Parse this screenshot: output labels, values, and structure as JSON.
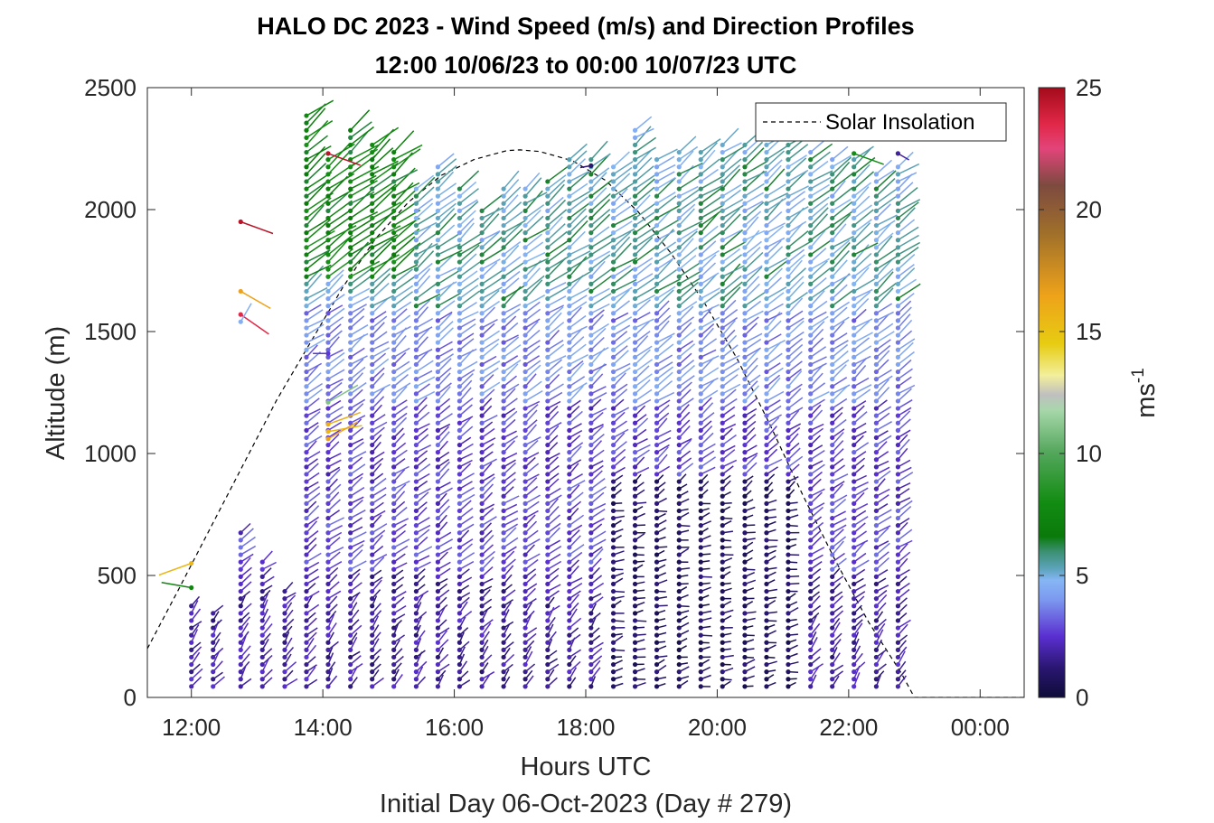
{
  "title_line1": "HALO DC 2023 - Wind Speed (m/s) and Direction Profiles",
  "title_line2": "12:00 10/06/23 to 00:00 10/07/23  UTC",
  "chart_data": {
    "type": "scatter",
    "xlabel": "Hours UTC",
    "subtitle": "Initial Day 06-Oct-2023 (Day # 279)",
    "ylabel": "Altitude (m)",
    "x_unit": "hours UTC",
    "xlim": [
      11.33,
      24.67
    ],
    "ylim": [
      0,
      2500
    ],
    "x_ticks": [
      {
        "value": 12,
        "label": "12:00"
      },
      {
        "value": 14,
        "label": "14:00"
      },
      {
        "value": 16,
        "label": "16:00"
      },
      {
        "value": 18,
        "label": "18:00"
      },
      {
        "value": 20,
        "label": "20:00"
      },
      {
        "value": 22,
        "label": "22:00"
      },
      {
        "value": 24,
        "label": "00:00"
      }
    ],
    "y_ticks": [
      0,
      500,
      1000,
      1500,
      2000,
      2500
    ],
    "legend": {
      "position": "top-right",
      "entries": [
        "Solar Insolation"
      ]
    },
    "colorbar": {
      "label": "ms",
      "label_exponent": "-1",
      "range": [
        0,
        25
      ],
      "ticks": [
        0,
        5,
        10,
        15,
        20,
        25
      ],
      "stops": [
        {
          "v": 0,
          "c": "#0e0c38"
        },
        {
          "v": 1.2,
          "c": "#2a1670"
        },
        {
          "v": 2.5,
          "c": "#5a2fd0"
        },
        {
          "v": 4.0,
          "c": "#7c98ef"
        },
        {
          "v": 4.8,
          "c": "#86b6f4"
        },
        {
          "v": 5.3,
          "c": "#5ba2b8"
        },
        {
          "v": 6.0,
          "c": "#3a8f70"
        },
        {
          "v": 6.6,
          "c": "#0a7a0a"
        },
        {
          "v": 8.0,
          "c": "#138c13"
        },
        {
          "v": 10.0,
          "c": "#52a65a"
        },
        {
          "v": 11.8,
          "c": "#a8d7ab"
        },
        {
          "v": 12.4,
          "c": "#bfbfbf"
        },
        {
          "v": 13.2,
          "c": "#f3ef9c"
        },
        {
          "v": 14.5,
          "c": "#e7cc12"
        },
        {
          "v": 16.5,
          "c": "#eea21a"
        },
        {
          "v": 19.0,
          "c": "#a0702a"
        },
        {
          "v": 21.0,
          "c": "#7d4a40"
        },
        {
          "v": 22.5,
          "c": "#e2447a"
        },
        {
          "v": 23.5,
          "c": "#e12848"
        },
        {
          "v": 25,
          "c": "#a40b1a"
        }
      ]
    },
    "solar_insolation": {
      "line_style": "dashed",
      "color": "#000000",
      "peak_time": 17.0,
      "peak_altitude_equiv": 2245,
      "curve_end": 23.0,
      "points": [
        [
          11.33,
          200
        ],
        [
          11.8,
          440
        ],
        [
          12.3,
          700
        ],
        [
          12.8,
          960
        ],
        [
          13.3,
          1220
        ],
        [
          13.8,
          1450
        ],
        [
          14.3,
          1680
        ],
        [
          14.8,
          1880
        ],
        [
          15.3,
          2030
        ],
        [
          15.8,
          2140
        ],
        [
          16.3,
          2205
        ],
        [
          16.8,
          2242
        ],
        [
          17.0,
          2245
        ],
        [
          17.3,
          2238
        ],
        [
          17.8,
          2200
        ],
        [
          18.3,
          2120
        ],
        [
          18.8,
          1990
        ],
        [
          19.3,
          1820
        ],
        [
          19.8,
          1620
        ],
        [
          20.3,
          1390
        ],
        [
          20.8,
          1120
        ],
        [
          21.3,
          830
        ],
        [
          21.8,
          560
        ],
        [
          22.3,
          310
        ],
        [
          22.8,
          100
        ],
        [
          23.0,
          0
        ],
        [
          24.67,
          0
        ]
      ]
    },
    "profile_times": [
      12.0,
      12.33,
      12.75,
      13.08,
      13.42,
      13.75,
      14.08,
      14.42,
      14.75,
      15.08,
      15.42,
      15.75,
      16.08,
      16.42,
      16.75,
      17.08,
      17.42,
      17.75,
      18.08,
      18.42,
      18.75,
      19.08,
      19.42,
      19.75,
      20.08,
      20.42,
      20.75,
      21.08,
      21.42,
      21.75,
      22.08,
      22.42,
      22.75
    ],
    "profile_tops": [
      380,
      350,
      700,
      580,
      450,
      2410,
      2230,
      2330,
      2290,
      2240,
      2100,
      2190,
      2110,
      2000,
      2110,
      2110,
      2140,
      2230,
      2220,
      2200,
      2330,
      2220,
      2240,
      2260,
      2270,
      2270,
      2320,
      2330,
      2260,
      2210,
      2230,
      2170,
      2190
    ],
    "wind_barbs": [
      {
        "t": 12.0,
        "alt": 550,
        "speed": 15.5,
        "dir": 250
      },
      {
        "t": 12.0,
        "alt": 450,
        "speed": 7.5,
        "dir": 280
      },
      {
        "t": 12.75,
        "alt": 1950,
        "speed": 24.5,
        "dir": 110
      },
      {
        "t": 12.75,
        "alt": 1665,
        "speed": 16.5,
        "dir": 120
      },
      {
        "t": 12.75,
        "alt": 1570,
        "speed": 23.5,
        "dir": 125
      },
      {
        "t": 12.75,
        "alt": 1540,
        "speed": 4.6,
        "dir": 30
      },
      {
        "t": 14.08,
        "alt": 2230,
        "speed": 24.5,
        "dir": 110
      },
      {
        "t": 14.08,
        "alt": 1410,
        "speed": 2.6,
        "dir": 270
      },
      {
        "t": 14.08,
        "alt": 1210,
        "speed": 11.0,
        "dir": 60
      },
      {
        "t": 14.08,
        "alt": 1120,
        "speed": 16.0,
        "dir": 70
      },
      {
        "t": 14.08,
        "alt": 1090,
        "speed": 15.5,
        "dir": 80
      },
      {
        "t": 14.08,
        "alt": 1060,
        "speed": 16.5,
        "dir": 60
      },
      {
        "t": 18.08,
        "alt": 2180,
        "speed": 1.2,
        "dir": 260
      },
      {
        "t": 22.08,
        "alt": 2230,
        "speed": 8.0,
        "dir": 110
      },
      {
        "t": 22.75,
        "alt": 2230,
        "speed": 1.8,
        "dir": 120
      }
    ]
  }
}
